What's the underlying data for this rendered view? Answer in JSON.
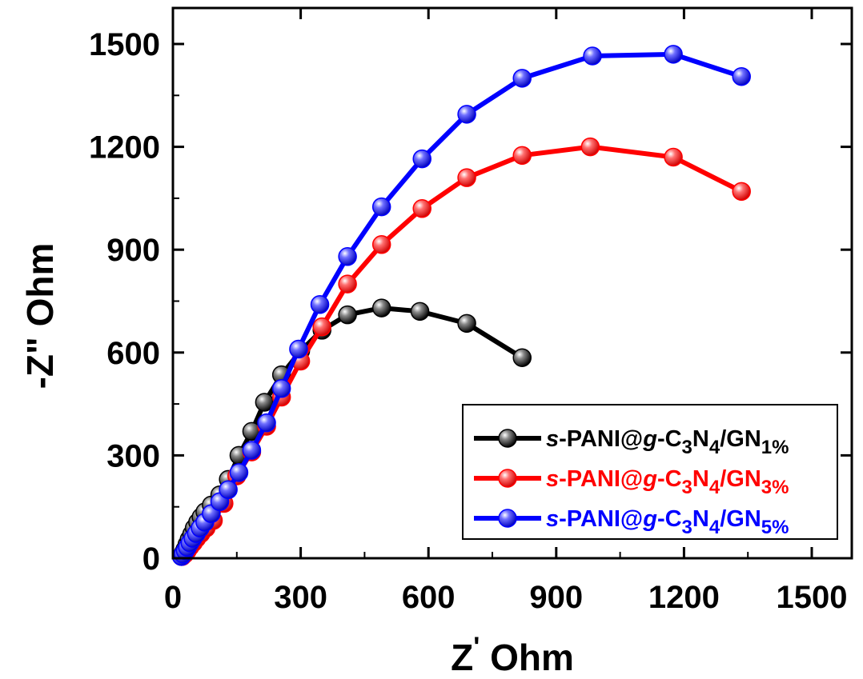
{
  "chart_data": {
    "type": "scatter",
    "xlabel_base": "Z",
    "xlabel_prime": "'",
    "xlabel_unit": "Ohm",
    "ylabel": "-Z\" Ohm",
    "xlim": [
      0,
      1600
    ],
    "ylim": [
      0,
      1500
    ],
    "xticks": [
      0,
      300,
      600,
      900,
      1200,
      1500
    ],
    "yticks": [
      0,
      300,
      600,
      900,
      1200,
      1500
    ],
    "legend_position": "lower-right",
    "series": [
      {
        "name": "s-PANI@g-C3N4/GN1%",
        "label_parts": {
          "pre": "s",
          "a": "-PANI@",
          "g": "g",
          "b": "-C",
          "sub1": "3",
          "c": "N",
          "sub2": "4",
          "d": "/GN",
          "sub3": "1%"
        },
        "color": "#000000",
        "points": [
          [
            20,
            5
          ],
          [
            24,
            15
          ],
          [
            28,
            25
          ],
          [
            33,
            40
          ],
          [
            38,
            55
          ],
          [
            44,
            70
          ],
          [
            50,
            88
          ],
          [
            58,
            105
          ],
          [
            66,
            120
          ],
          [
            75,
            135
          ],
          [
            90,
            155
          ],
          [
            110,
            185
          ],
          [
            130,
            230
          ],
          [
            155,
            300
          ],
          [
            185,
            370
          ],
          [
            215,
            455
          ],
          [
            255,
            535
          ],
          [
            300,
            605
          ],
          [
            350,
            665
          ],
          [
            410,
            710
          ],
          [
            490,
            730
          ],
          [
            580,
            720
          ],
          [
            690,
            685
          ],
          [
            820,
            585
          ]
        ]
      },
      {
        "name": "s-PANI@g-C3N4/GN3%",
        "label_parts": {
          "pre": "s",
          "a": "-PANI@",
          "g": "g",
          "b": "-C",
          "sub1": "3",
          "c": "N",
          "sub2": "4",
          "d": "/GN",
          "sub3": "3%"
        },
        "color": "#ff0000",
        "points": [
          [
            22,
            5
          ],
          [
            28,
            12
          ],
          [
            34,
            22
          ],
          [
            40,
            33
          ],
          [
            48,
            45
          ],
          [
            56,
            58
          ],
          [
            66,
            72
          ],
          [
            78,
            88
          ],
          [
            95,
            110
          ],
          [
            120,
            160
          ],
          [
            150,
            240
          ],
          [
            185,
            310
          ],
          [
            220,
            385
          ],
          [
            255,
            470
          ],
          [
            300,
            575
          ],
          [
            350,
            675
          ],
          [
            410,
            800
          ],
          [
            490,
            915
          ],
          [
            585,
            1020
          ],
          [
            690,
            1110
          ],
          [
            820,
            1175
          ],
          [
            980,
            1200
          ],
          [
            1175,
            1170
          ],
          [
            1335,
            1070
          ]
        ]
      },
      {
        "name": "s-PANI@g-C3N4/GN5%",
        "label_parts": {
          "pre": "s",
          "a": "-PANI@",
          "g": "g",
          "b": "-C",
          "sub1": "3",
          "c": "N",
          "sub2": "4",
          "d": "/GN",
          "sub3": "5%"
        },
        "color": "#0000ff",
        "points": [
          [
            20,
            5
          ],
          [
            24,
            12
          ],
          [
            29,
            22
          ],
          [
            34,
            32
          ],
          [
            40,
            45
          ],
          [
            47,
            58
          ],
          [
            55,
            72
          ],
          [
            64,
            88
          ],
          [
            75,
            105
          ],
          [
            90,
            130
          ],
          [
            110,
            165
          ],
          [
            130,
            200
          ],
          [
            155,
            250
          ],
          [
            185,
            315
          ],
          [
            220,
            395
          ],
          [
            255,
            495
          ],
          [
            295,
            610
          ],
          [
            345,
            740
          ],
          [
            410,
            880
          ],
          [
            490,
            1025
          ],
          [
            585,
            1165
          ],
          [
            690,
            1295
          ],
          [
            820,
            1400
          ],
          [
            985,
            1465
          ],
          [
            1175,
            1470
          ],
          [
            1335,
            1405
          ]
        ]
      }
    ]
  }
}
